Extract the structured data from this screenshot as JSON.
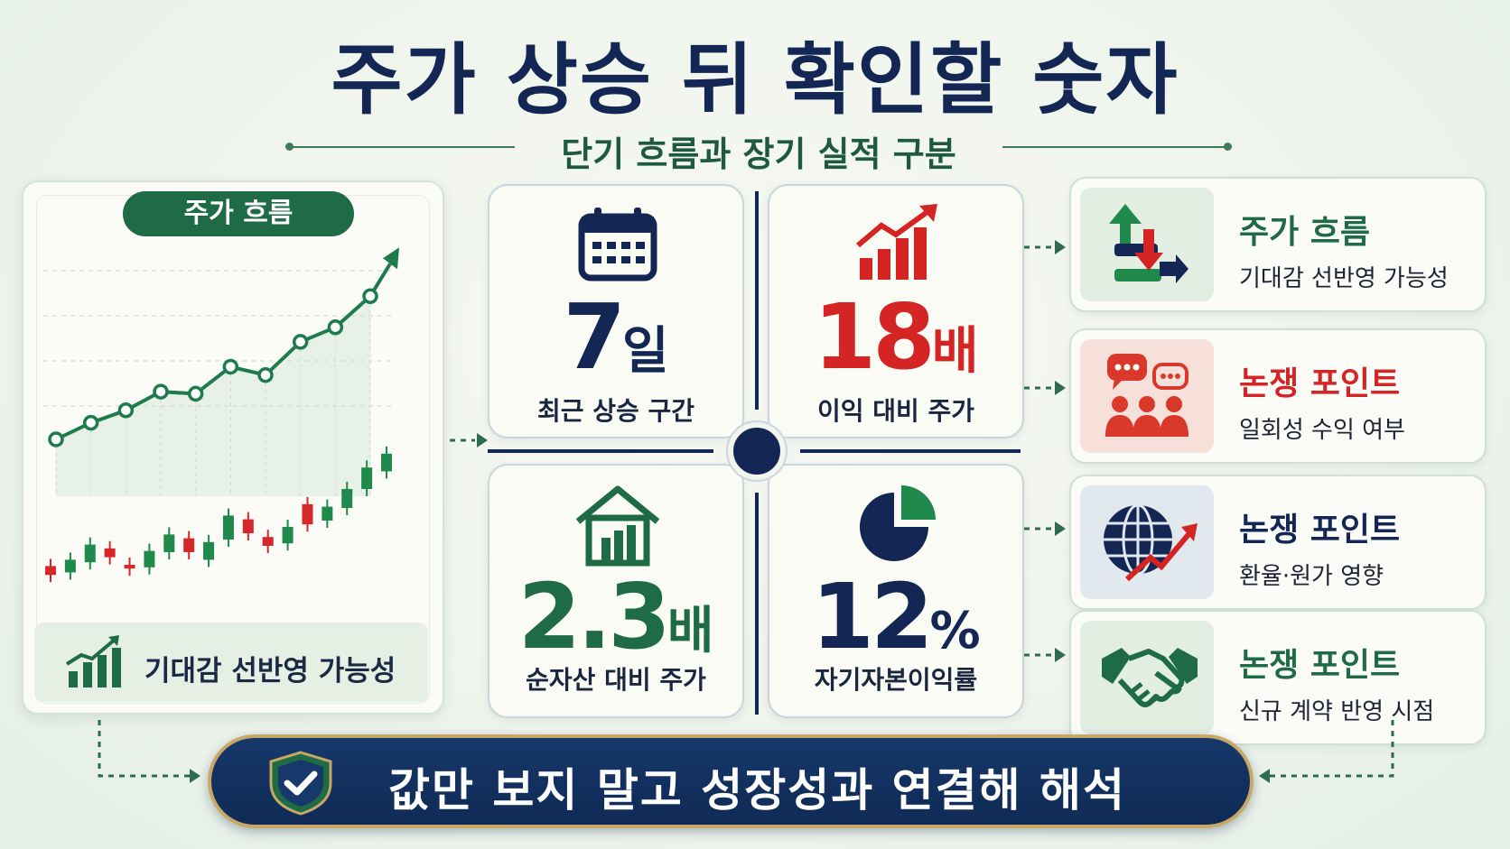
{
  "header": {
    "title": "주가 상승 뒤 확인할 숫자",
    "subtitle": "단기 흐름과 장기 실적 구분"
  },
  "chart_panel": {
    "pill_label": "주가 흐름",
    "footer_text": "기대감 선반영 가능성",
    "colors": {
      "line": "#1f7a4c",
      "up": "#1f8a4c",
      "down": "#d62828"
    }
  },
  "chart_data": {
    "type": "line",
    "title": "",
    "xlabel": "",
    "ylabel": "",
    "x": [
      1,
      2,
      3,
      4,
      5,
      6,
      7,
      8,
      9,
      10
    ],
    "series": [
      {
        "values": [
          10,
          18,
          24,
          33,
          32,
          45,
          41,
          57,
          64,
          79
        ]
      }
    ],
    "candles": [
      {
        "dir": "down",
        "open": 0.9,
        "close": 0.2
      },
      {
        "dir": "up",
        "open": 0.4,
        "close": 1.4
      },
      {
        "dir": "up",
        "open": 1.2,
        "close": 2.6
      },
      {
        "dir": "down",
        "open": 2.3,
        "close": 1.6
      },
      {
        "dir": "down",
        "open": 1.0,
        "close": 0.7
      },
      {
        "dir": "up",
        "open": 0.8,
        "close": 2.1
      },
      {
        "dir": "up",
        "open": 2.0,
        "close": 3.4
      },
      {
        "dir": "down",
        "open": 3.1,
        "close": 2.0
      },
      {
        "dir": "up",
        "open": 1.4,
        "close": 2.8
      },
      {
        "dir": "up",
        "open": 3.0,
        "close": 4.9
      },
      {
        "dir": "down",
        "open": 4.6,
        "close": 3.5
      },
      {
        "dir": "down",
        "open": 3.2,
        "close": 2.5
      },
      {
        "dir": "up",
        "open": 2.7,
        "close": 4.0
      },
      {
        "dir": "down",
        "open": 4.2,
        "close": 5.8
      },
      {
        "dir": "up",
        "open": 4.5,
        "close": 5.6
      },
      {
        "dir": "up",
        "open": 5.5,
        "close": 7.0
      },
      {
        "dir": "up",
        "open": 7.0,
        "close": 8.7
      },
      {
        "dir": "up",
        "open": 8.4,
        "close": 9.8
      }
    ],
    "grid": true
  },
  "stats": [
    {
      "value": "7",
      "unit": "일",
      "label": "최근 상승 구간",
      "icon": "calendar-icon",
      "color": "#132654"
    },
    {
      "value": "18",
      "unit": "배",
      "label": "이익 대비 주가",
      "icon": "bar-chart-up-icon",
      "color": "#d42424"
    },
    {
      "value": "2.3",
      "unit": "배",
      "label": "순자산 대비 주가",
      "icon": "house-icon",
      "color": "#1f6b45"
    },
    {
      "value": "12",
      "unit": "%",
      "label": "자기자본이익률",
      "icon": "pie-chart-icon",
      "color": "#132654"
    }
  ],
  "points": [
    {
      "title": "주가 흐름",
      "desc": "기대감 선반영 가능성",
      "icon": "up-down-arrows-icon",
      "title_color": "#1f6b45",
      "box_color": "#e3eee3"
    },
    {
      "title": "논쟁 포인트",
      "desc": "일회성 수익 여부",
      "icon": "discussion-people-icon",
      "title_color": "#d42424",
      "box_color": "#f8e0da"
    },
    {
      "title": "논쟁 포인트",
      "desc": "환율·원가 영향",
      "icon": "globe-trend-icon",
      "title_color": "#132654",
      "box_color": "#e2e9ee"
    },
    {
      "title": "논쟁 포인트",
      "desc": "신규 계약 반영 시점",
      "icon": "handshake-icon",
      "title_color": "#1f6b45",
      "box_color": "#e3eee3"
    }
  ],
  "banner": {
    "text": "값만 보지 말고 성장성과 연결해 해석",
    "icon": "shield-check-icon"
  }
}
